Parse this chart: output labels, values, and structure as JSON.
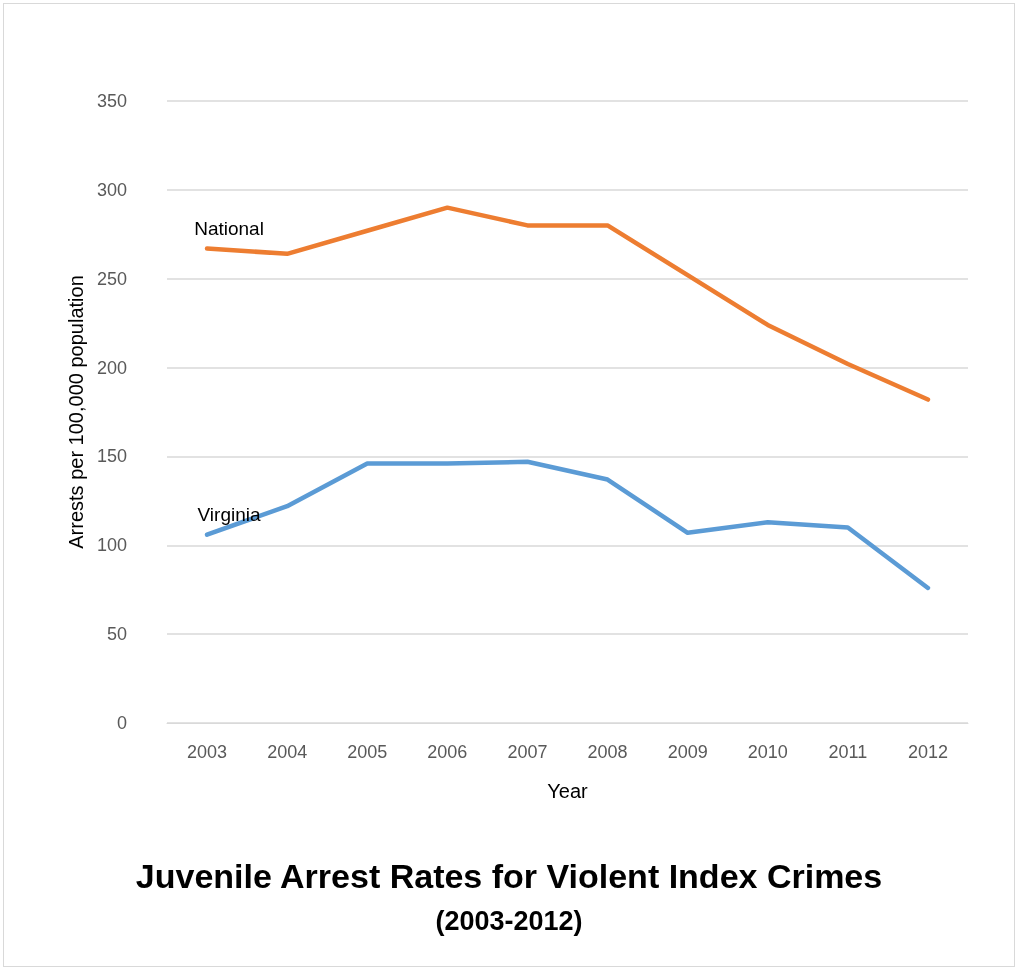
{
  "chart_data": {
    "type": "line",
    "title": "Juvenile Arrest Rates for Violent Index Crimes",
    "subtitle": "(2003-2012)",
    "xlabel": "Year",
    "ylabel": "Arrests per 100,000 population",
    "categories": [
      "2003",
      "2004",
      "2005",
      "2006",
      "2007",
      "2008",
      "2009",
      "2010",
      "2011",
      "2012"
    ],
    "series": [
      {
        "name": "National",
        "color": "#ed7d31",
        "values": [
          267,
          264,
          277,
          290,
          280,
          280,
          252,
          224,
          202,
          182
        ]
      },
      {
        "name": "Virginia",
        "color": "#5b9bd5",
        "values": [
          106,
          122,
          146,
          146,
          147,
          137,
          107,
          113,
          110,
          76
        ]
      }
    ],
    "ylim": [
      0,
      350
    ],
    "yticks": [
      0,
      50,
      100,
      150,
      200,
      250,
      300,
      350
    ],
    "grid": "y"
  }
}
